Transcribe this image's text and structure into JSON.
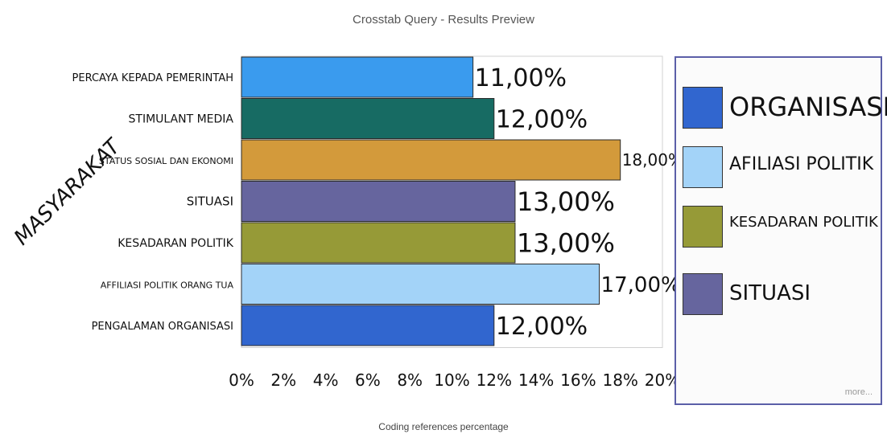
{
  "chart_data": {
    "type": "bar",
    "orientation": "horizontal",
    "title": "Crosstab Query - Results Preview",
    "xlabel": "Coding references percentage",
    "ylabel": "MASYARAKAT",
    "xlim": [
      0,
      20
    ],
    "x_ticks": [
      "0%",
      "2%",
      "4%",
      "6%",
      "8%",
      "10%",
      "12%",
      "14%",
      "16%",
      "18%",
      "20%"
    ],
    "bars": [
      {
        "category": "PERCAYA KEPADA PEMERINTAH",
        "value": 11,
        "label": "11,00%",
        "color": "#3a9bee"
      },
      {
        "category": "STIMULANT MEDIA",
        "value": 12,
        "label": "12,00%",
        "color": "#176b63"
      },
      {
        "category": "STATUS SOSIAL DAN EKONOMI",
        "value": 18,
        "label": "18,00%",
        "color": "#d39a3b"
      },
      {
        "category": "SITUASI",
        "value": 13,
        "label": "13,00%",
        "color": "#66659e"
      },
      {
        "category": "KESADARAN POLITIK",
        "value": 13,
        "label": "13,00%",
        "color": "#969a37"
      },
      {
        "category": "AFFILIASI POLITIK ORANG TUA",
        "value": 17,
        "label": "17,00%",
        "color": "#a3d3f8"
      },
      {
        "category": "PENGALAMAN ORGANISASI",
        "value": 12,
        "label": "12,00%",
        "color": "#3166cf"
      }
    ],
    "grid": false,
    "legend_placement": "right"
  },
  "legend": {
    "items": [
      {
        "label": "ORGANISASI",
        "color": "#3166cf"
      },
      {
        "label": "AFILIASI POLITIK",
        "color": "#a3d3f8"
      },
      {
        "label": "KESADARAN POLITIK",
        "color": "#969a37"
      },
      {
        "label": "SITUASI",
        "color": "#66659e"
      }
    ],
    "more": "more..."
  }
}
